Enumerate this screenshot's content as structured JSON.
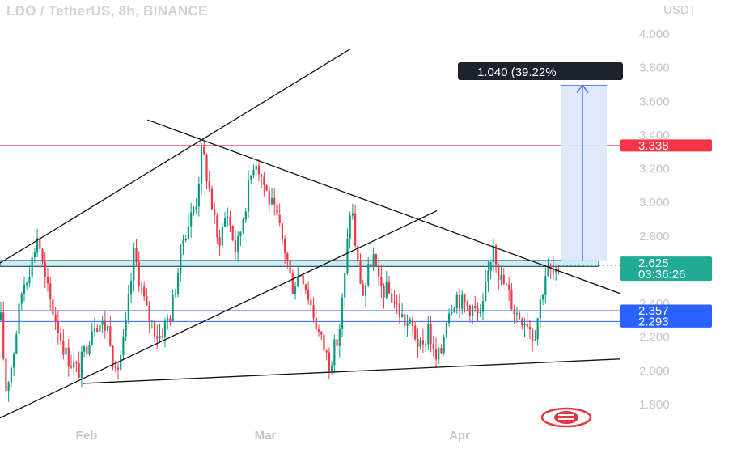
{
  "header": {
    "title": "LDO / TetherUS, 8h, BINANCE",
    "currency": "USDT"
  },
  "measure_label": "1.040 (39.22%",
  "price_badges": [
    {
      "value": "3.338",
      "color": "#f23645"
    },
    {
      "value": "2.625",
      "sub": "03:36:26",
      "color": "#22ab94"
    },
    {
      "value": "2.357",
      "color": "#2962ff"
    },
    {
      "value": "2.293",
      "color": "#2962ff"
    }
  ],
  "chart_data": {
    "type": "candlestick",
    "symbol": "LDO / TetherUS",
    "interval": "8h",
    "exchange": "BINANCE",
    "y_axis": {
      "unit": "USDT",
      "ylim": [
        1.75,
        4.1
      ],
      "ticks": [
        "4.000",
        "3.800",
        "3.600",
        "3.400",
        "3.200",
        "3.000",
        "2.800",
        "2.400",
        "2.200",
        "2.000",
        "1.800"
      ]
    },
    "x_axis": {
      "ticks": [
        "Feb",
        "Mar",
        "Apr"
      ]
    },
    "horizontal_levels": [
      {
        "value": 3.338,
        "color": "#f23645"
      },
      {
        "value": 2.357,
        "color": "#2962ff"
      },
      {
        "value": 2.293,
        "color": "#2962ff"
      },
      {
        "value": 2.625,
        "color": "#22ab94",
        "style": "dotted"
      }
    ],
    "zone": {
      "from": 2.62,
      "to": 2.655,
      "color": "#b2ebf2"
    },
    "projection": {
      "from": 2.655,
      "to": 3.695,
      "change": "1.040",
      "percent": "39.22%",
      "color": "#2962ff"
    },
    "candle_colors": {
      "up": "#089981",
      "down": "#f23645"
    },
    "trendlines": [
      {
        "name": "channel-upper",
        "x0": 0.0,
        "y0": 2.64,
        "x1": 0.565,
        "y1": 3.91
      },
      {
        "name": "channel-lower",
        "x0": 0.0,
        "y0": 1.72,
        "x1": 0.705,
        "y1": 2.95
      },
      {
        "name": "resistance",
        "x0": 0.238,
        "y0": 3.49,
        "x1": 1.0,
        "y1": 2.46
      },
      {
        "name": "support",
        "x0": 0.133,
        "y0": 1.925,
        "x1": 1.0,
        "y1": 2.07
      }
    ],
    "anchors": [
      [
        0.0,
        2.3
      ],
      [
        0.008,
        1.89
      ],
      [
        0.018,
        2.05
      ],
      [
        0.035,
        2.5
      ],
      [
        0.05,
        2.65
      ],
      [
        0.06,
        2.82
      ],
      [
        0.07,
        2.55
      ],
      [
        0.085,
        2.35
      ],
      [
        0.105,
        2.1
      ],
      [
        0.125,
        1.99
      ],
      [
        0.15,
        2.3
      ],
      [
        0.175,
        2.25
      ],
      [
        0.185,
        1.96
      ],
      [
        0.2,
        2.2
      ],
      [
        0.215,
        2.7
      ],
      [
        0.235,
        2.35
      ],
      [
        0.255,
        2.2
      ],
      [
        0.275,
        2.35
      ],
      [
        0.295,
        2.8
      ],
      [
        0.315,
        3.0
      ],
      [
        0.325,
        3.32
      ],
      [
        0.34,
        3.0
      ],
      [
        0.35,
        2.75
      ],
      [
        0.365,
        2.95
      ],
      [
        0.38,
        2.7
      ],
      [
        0.395,
        3.0
      ],
      [
        0.41,
        3.28
      ],
      [
        0.43,
        3.05
      ],
      [
        0.445,
        2.9
      ],
      [
        0.46,
        2.7
      ],
      [
        0.47,
        2.5
      ],
      [
        0.485,
        2.6
      ],
      [
        0.5,
        2.4
      ],
      [
        0.515,
        2.2
      ],
      [
        0.53,
        2.05
      ],
      [
        0.545,
        2.2
      ],
      [
        0.555,
        2.55
      ],
      [
        0.565,
        3.02
      ],
      [
        0.575,
        2.65
      ],
      [
        0.585,
        2.45
      ],
      [
        0.6,
        2.7
      ],
      [
        0.61,
        2.5
      ],
      [
        0.63,
        2.45
      ],
      [
        0.65,
        2.3
      ],
      [
        0.665,
        2.25
      ],
      [
        0.68,
        2.1
      ],
      [
        0.69,
        2.28
      ],
      [
        0.7,
        2.05
      ],
      [
        0.71,
        2.1
      ],
      [
        0.72,
        2.35
      ],
      [
        0.735,
        2.45
      ],
      [
        0.745,
        2.4
      ],
      [
        0.76,
        2.38
      ],
      [
        0.775,
        2.3
      ],
      [
        0.785,
        2.55
      ],
      [
        0.795,
        2.78
      ],
      [
        0.805,
        2.55
      ],
      [
        0.815,
        2.5
      ],
      [
        0.83,
        2.35
      ],
      [
        0.85,
        2.3
      ],
      [
        0.86,
        2.2
      ],
      [
        0.87,
        2.4
      ],
      [
        0.88,
        2.6
      ],
      [
        0.89,
        2.58
      ],
      [
        0.9,
        2.55
      ]
    ]
  }
}
